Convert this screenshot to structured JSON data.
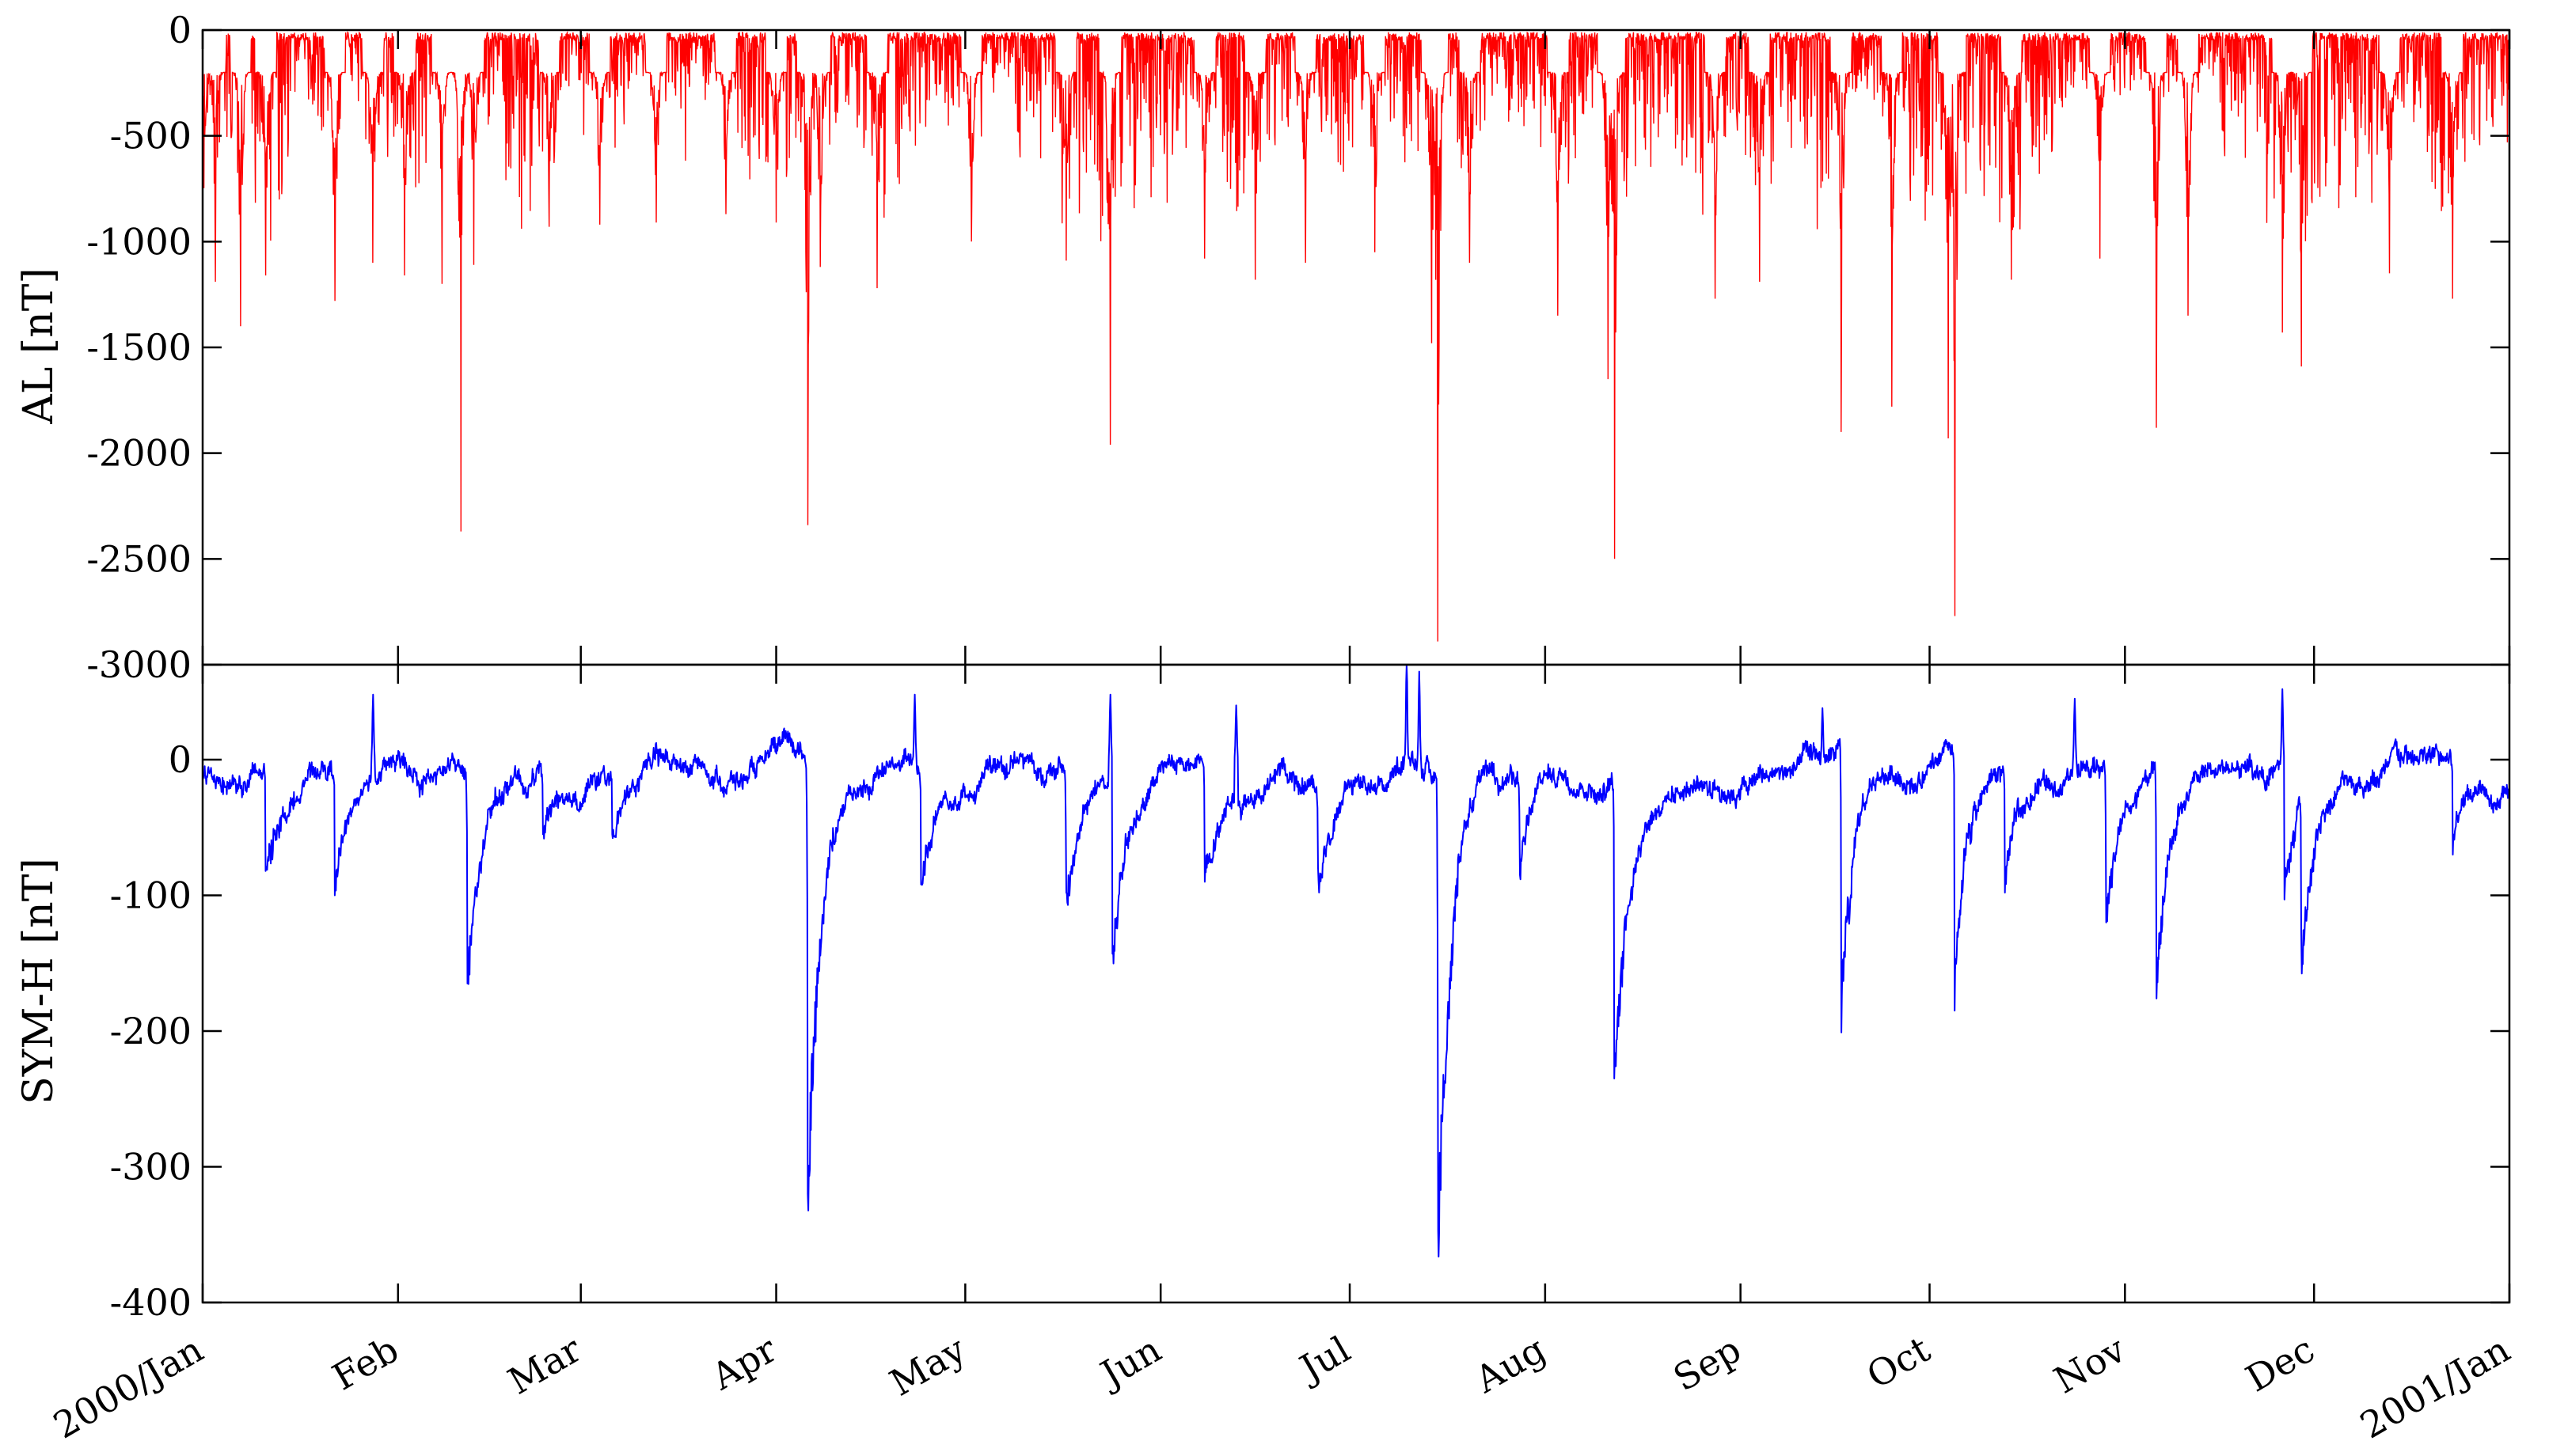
{
  "chart_data": [
    {
      "type": "line",
      "panel": "top",
      "ylabel": "AL [nT]",
      "ylim": [
        -3000,
        0
      ],
      "yticks": [
        0,
        -500,
        -1000,
        -1500,
        -2000,
        -2500,
        -3000
      ],
      "ytick_labels": [
        "0",
        "-500",
        "-1000",
        "-1500",
        "-2000",
        "-2500",
        "-3000"
      ],
      "grid": false,
      "series": [
        {
          "color": "#ff0000",
          "baseline": {
            "min": -700,
            "max": -30
          },
          "events": [
            {
              "x": "2000-01-01",
              "y": -1150
            },
            {
              "x": "2000-01-03",
              "y": -1190
            },
            {
              "x": "2000-01-07",
              "y": -1400
            },
            {
              "x": "2000-01-11",
              "y": -1160
            },
            {
              "x": "2000-01-22",
              "y": -1280
            },
            {
              "x": "2000-01-28",
              "y": -1100
            },
            {
              "x": "2000-02-02",
              "y": -1160
            },
            {
              "x": "2000-02-08",
              "y": -1200
            },
            {
              "x": "2000-02-11",
              "y": -2370
            },
            {
              "x": "2000-02-13",
              "y": -1110
            },
            {
              "x": "2000-02-25",
              "y": -930
            },
            {
              "x": "2000-03-04",
              "y": -920
            },
            {
              "x": "2000-03-13",
              "y": -910
            },
            {
              "x": "2000-03-24",
              "y": -870
            },
            {
              "x": "2000-04-01",
              "y": -910
            },
            {
              "x": "2000-04-06",
              "y": -2340
            },
            {
              "x": "2000-04-08",
              "y": -1120
            },
            {
              "x": "2000-04-17",
              "y": -1220
            },
            {
              "x": "2000-05-02",
              "y": -1000
            },
            {
              "x": "2000-05-17",
              "y": -1090
            },
            {
              "x": "2000-05-24",
              "y": -1960
            },
            {
              "x": "2000-06-08",
              "y": -1080
            },
            {
              "x": "2000-06-16",
              "y": -1180
            },
            {
              "x": "2000-06-24",
              "y": -1100
            },
            {
              "x": "2000-07-05",
              "y": -1050
            },
            {
              "x": "2000-07-14",
              "y": -1480
            },
            {
              "x": "2000-07-15",
              "y": -2890
            },
            {
              "x": "2000-07-20",
              "y": -1100
            },
            {
              "x": "2000-08-03",
              "y": -1350
            },
            {
              "x": "2000-08-11",
              "y": -1650
            },
            {
              "x": "2000-08-12",
              "y": -2500
            },
            {
              "x": "2000-08-28",
              "y": -1270
            },
            {
              "x": "2000-09-04",
              "y": -1190
            },
            {
              "x": "2000-09-17",
              "y": -1900
            },
            {
              "x": "2000-09-25",
              "y": -1780
            },
            {
              "x": "2000-10-04",
              "y": -1930
            },
            {
              "x": "2000-10-05",
              "y": -2770
            },
            {
              "x": "2000-10-14",
              "y": -1180
            },
            {
              "x": "2000-10-28",
              "y": -1080
            },
            {
              "x": "2000-11-06",
              "y": -1880
            },
            {
              "x": "2000-11-11",
              "y": -1350
            },
            {
              "x": "2000-11-26",
              "y": -1430
            },
            {
              "x": "2000-11-29",
              "y": -1590
            },
            {
              "x": "2000-12-13",
              "y": -1150
            },
            {
              "x": "2000-12-23",
              "y": -1270
            }
          ]
        }
      ]
    },
    {
      "type": "line",
      "panel": "bottom",
      "ylabel": "SYM-H [nT]",
      "ylim": [
        -400,
        70
      ],
      "yticks": [
        0,
        -100,
        -200,
        -300,
        -400
      ],
      "ytick_labels": [
        "0",
        "-100",
        "-200",
        "-300",
        "-400"
      ],
      "grid": false,
      "series": [
        {
          "color": "#0000ff",
          "baseline": {
            "min": -45,
            "max": 25
          },
          "storms": [
            {
              "x": "2000-01-11",
              "y": -82
            },
            {
              "x": "2000-01-22",
              "y": -100
            },
            {
              "x": "2000-02-12",
              "y": -165
            },
            {
              "x": "2000-02-24",
              "y": -55
            },
            {
              "x": "2000-03-06",
              "y": -55
            },
            {
              "x": "2000-04-06",
              "y": -320
            },
            {
              "x": "2000-04-24",
              "y": -92
            },
            {
              "x": "2000-05-17",
              "y": -98
            },
            {
              "x": "2000-05-24",
              "y": -173
            },
            {
              "x": "2000-06-08",
              "y": -90
            },
            {
              "x": "2000-06-26",
              "y": -80
            },
            {
              "x": "2000-07-15",
              "y": -347
            },
            {
              "x": "2000-07-28",
              "y": -85
            },
            {
              "x": "2000-08-12",
              "y": -235
            },
            {
              "x": "2000-09-17",
              "y": -201
            },
            {
              "x": "2000-10-05",
              "y": -185
            },
            {
              "x": "2000-10-13",
              "y": -98
            },
            {
              "x": "2000-10-29",
              "y": -120
            },
            {
              "x": "2000-11-06",
              "y": -176
            },
            {
              "x": "2000-11-26",
              "y": -115
            },
            {
              "x": "2000-11-29",
              "y": -127
            },
            {
              "x": "2000-12-23",
              "y": -70
            }
          ],
          "spikes": [
            {
              "x": "2000-01-28",
              "y": 48
            },
            {
              "x": "2000-04-23",
              "y": 48
            },
            {
              "x": "2000-05-24",
              "y": 48
            },
            {
              "x": "2000-06-13",
              "y": 40
            },
            {
              "x": "2000-07-10",
              "y": 80
            },
            {
              "x": "2000-07-12",
              "y": 65
            },
            {
              "x": "2000-09-14",
              "y": 38
            },
            {
              "x": "2000-10-24",
              "y": 45
            },
            {
              "x": "2000-11-26",
              "y": 52
            }
          ]
        }
      ]
    }
  ],
  "x_axis": {
    "range": [
      "2000-01-01",
      "2001-01-01"
    ],
    "ticks": [
      "2000-01-01",
      "2000-02-01",
      "2000-03-01",
      "2000-04-01",
      "2000-05-01",
      "2000-06-01",
      "2000-07-01",
      "2000-08-01",
      "2000-09-01",
      "2000-10-01",
      "2000-11-01",
      "2000-12-01",
      "2001-01-01"
    ],
    "tick_labels": [
      "2000/Jan",
      "Feb",
      "Mar",
      "Apr",
      "May",
      "Jun",
      "Jul",
      "Aug",
      "Sep",
      "Oct",
      "Nov",
      "Dec",
      "2001/Jan"
    ]
  }
}
